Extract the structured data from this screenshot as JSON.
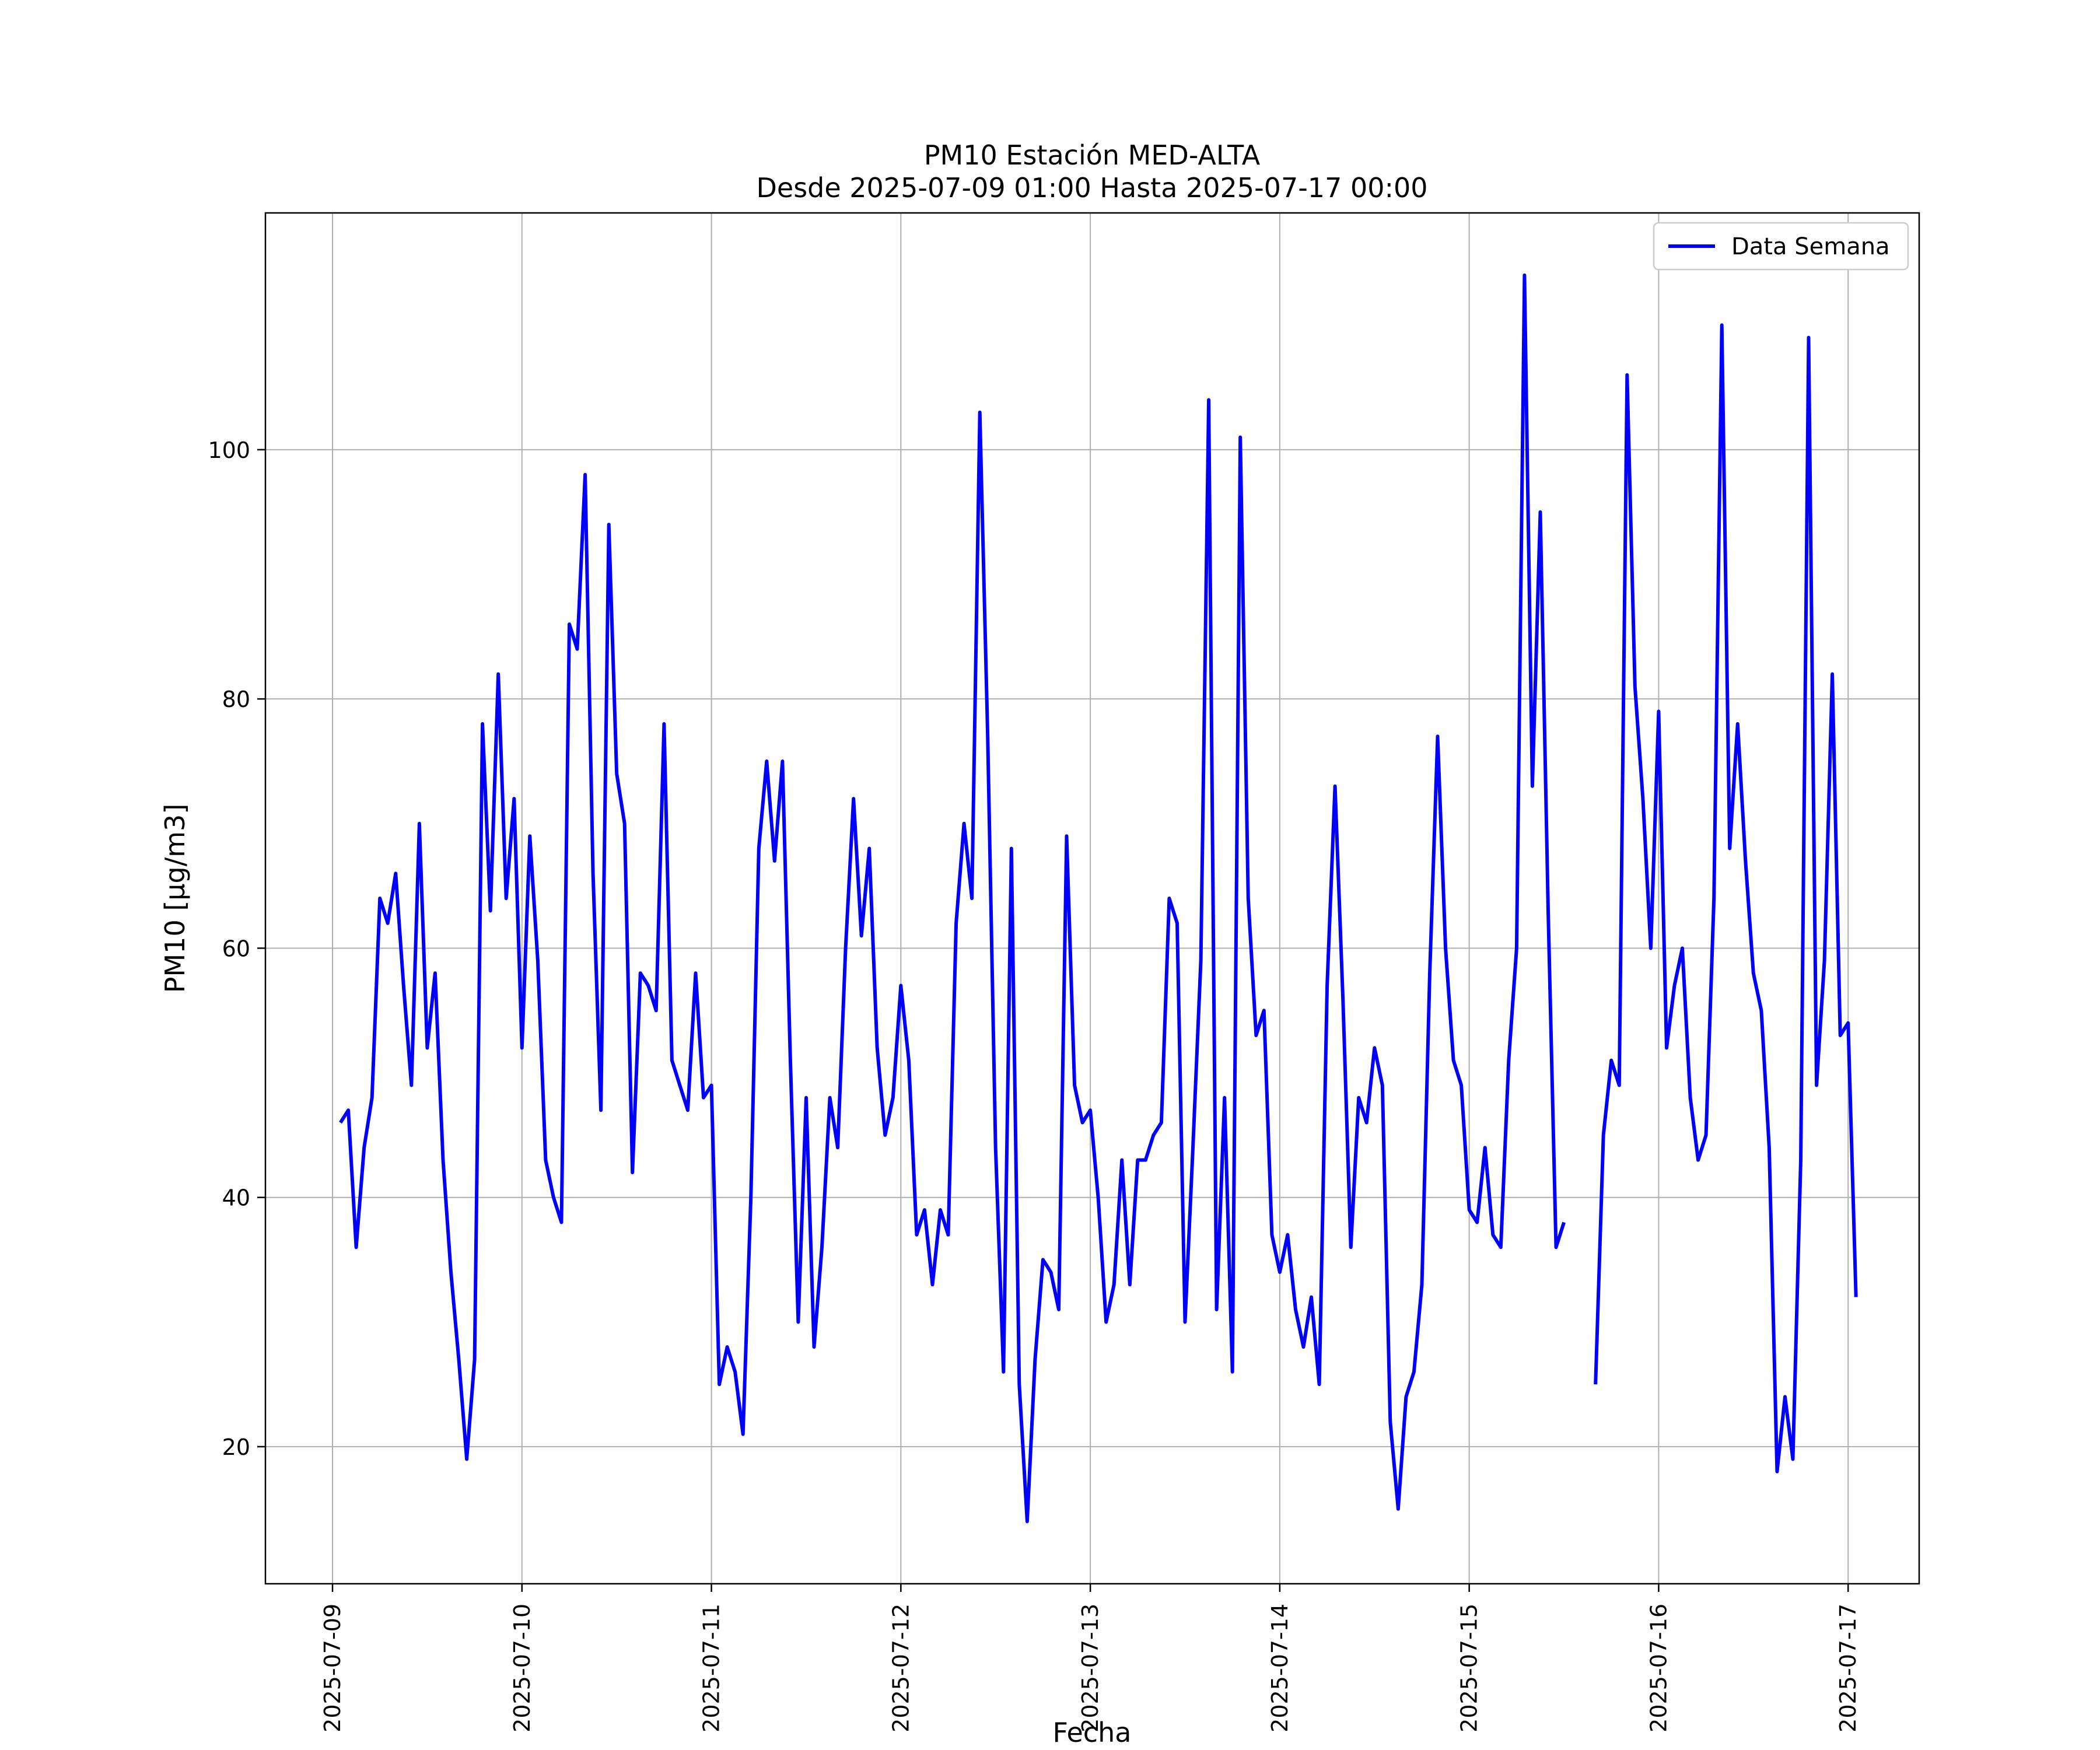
{
  "chart_data": {
    "type": "line",
    "title": "PM10 Estación MED-ALTA",
    "subtitle": "Desde 2025-07-09 01:00 Hasta 2025-07-17 00:00",
    "xlabel": "Fecha",
    "ylabel": "PM10 [μg/m3]",
    "x_ticks": [
      "2025-07-09",
      "2025-07-10",
      "2025-07-11",
      "2025-07-12",
      "2025-07-13",
      "2025-07-14",
      "2025-07-15",
      "2025-07-16",
      "2025-07-17"
    ],
    "y_ticks": [
      20,
      40,
      60,
      80,
      100
    ],
    "xlim": [
      "2025-07-08 15:30",
      "2025-07-17 09:00"
    ],
    "ylim": [
      9,
      119
    ],
    "grid": true,
    "legend_position": "upper right",
    "colors": {
      "line": "#0000ff",
      "grid": "#b0b0b0",
      "axis": "#000000"
    },
    "series": [
      {
        "name": "Data Semana",
        "segments": [
          {
            "start": "2025-07-09 01:00",
            "interval_hours": 1,
            "values": [
              46,
              47,
              36,
              44,
              48,
              64,
              62,
              66,
              57,
              49,
              70,
              52,
              58,
              43,
              34,
              27,
              19,
              27,
              78,
              63,
              82,
              64,
              72,
              52,
              69,
              59,
              43,
              40,
              38,
              86,
              84,
              98,
              66,
              47,
              94,
              74,
              70,
              42,
              58,
              57,
              55,
              78,
              51,
              49,
              47,
              58,
              48,
              49,
              25,
              28,
              26,
              21,
              40,
              68,
              75,
              67,
              75,
              51,
              30,
              48,
              28,
              36,
              48,
              44,
              60,
              72,
              61,
              68,
              52,
              45,
              48,
              57,
              51,
              37,
              39,
              33,
              39,
              37,
              62,
              70,
              64,
              103,
              77,
              44,
              26,
              68,
              25,
              14,
              27,
              35,
              34,
              31,
              69,
              49,
              46,
              47,
              40,
              30,
              33,
              43,
              33,
              43,
              43,
              45,
              46,
              64,
              62,
              30,
              44,
              59,
              104,
              31,
              48,
              26,
              101,
              64,
              53,
              55,
              37,
              34,
              37,
              31,
              28,
              32,
              25,
              57,
              73,
              56,
              36,
              48,
              46,
              52,
              49,
              22,
              15,
              24,
              26,
              33,
              58,
              77,
              60,
              51,
              49,
              39,
              38,
              44,
              37,
              36,
              51,
              60,
              114,
              73,
              95,
              63,
              36,
              38
            ]
          },
          {
            "start": "2025-07-15 16:00",
            "interval_hours": 1,
            "values": [
              25,
              45,
              51,
              49,
              106,
              81,
              72,
              60,
              79,
              52,
              57,
              60,
              48,
              43,
              45,
              64,
              110,
              68,
              78,
              67,
              58,
              55,
              44,
              18,
              24,
              19,
              43,
              109,
              49,
              59,
              82,
              53,
              54,
              32
            ]
          }
        ]
      }
    ]
  }
}
